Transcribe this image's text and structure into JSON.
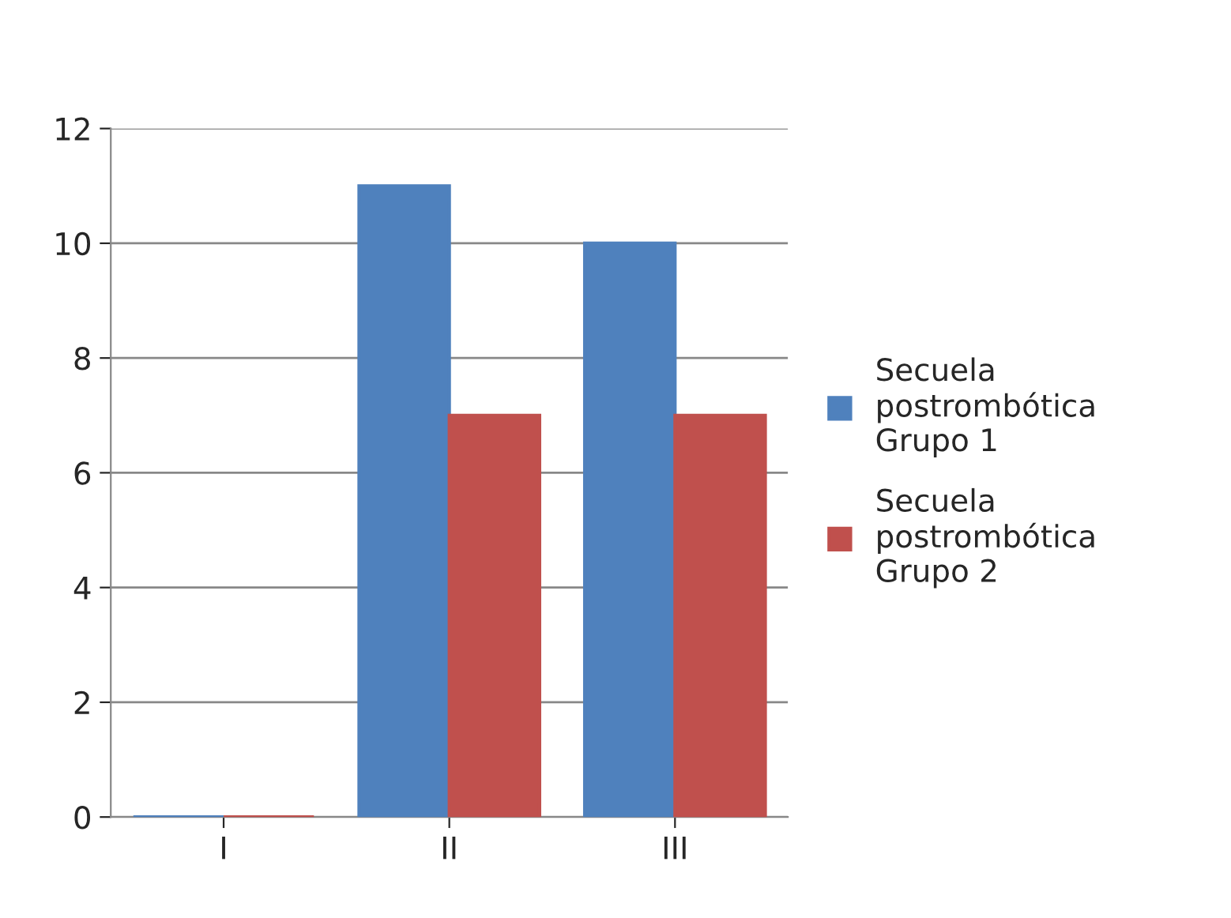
{
  "chart_data": {
    "type": "bar",
    "categories": [
      "I",
      "II",
      "III"
    ],
    "series": [
      {
        "name": "Secuela postrombótica Grupo 1",
        "color": "#4f81bd",
        "values": [
          0,
          11,
          10
        ]
      },
      {
        "name": "Secuela postrombótica Grupo 2",
        "color": "#c0504d",
        "values": [
          0,
          7,
          7
        ]
      }
    ],
    "ylim": [
      0,
      12
    ],
    "yticks": [
      0,
      2,
      4,
      6,
      8,
      10,
      12
    ],
    "grid": "y",
    "legend": "right"
  }
}
